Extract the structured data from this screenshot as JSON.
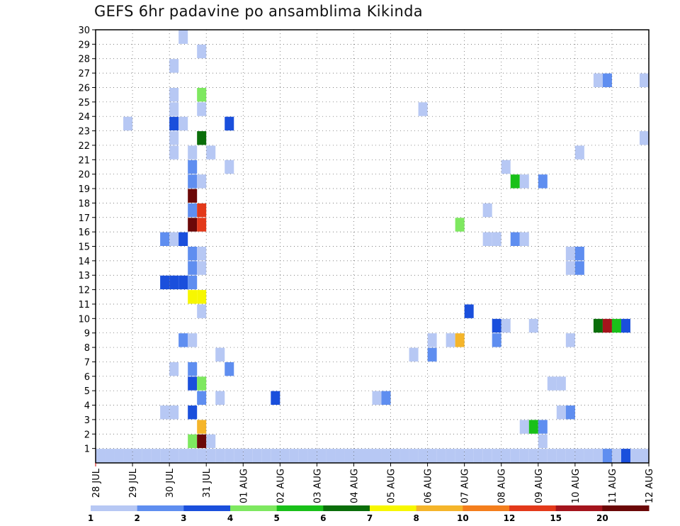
{
  "title": "GEFS 6hr padavine po ansamblima Kikinda",
  "chart_data": {
    "type": "heatmap",
    "title": "GEFS 6hr padavine po ansamblima Kikinda",
    "xlabel": "",
    "ylabel": "",
    "x_ticks": [
      "28 JUL",
      "29 JUL",
      "30 JUL",
      "31 JUL",
      "01 AUG",
      "02 AUG",
      "03 AUG",
      "04 AUG",
      "05 AUG",
      "06 AUG",
      "07 AUG",
      "08 AUG",
      "09 AUG",
      "10 AUG",
      "11 AUG",
      "12 AUG"
    ],
    "y_ticks": [
      "1",
      "2",
      "3",
      "4",
      "5",
      "6",
      "7",
      "8",
      "9",
      "10",
      "11",
      "12",
      "13",
      "14",
      "15",
      "16",
      "17",
      "18",
      "19",
      "20",
      "21",
      "22",
      "23",
      "24",
      "25",
      "26",
      "27",
      "28",
      "29",
      "30"
    ],
    "xlim_days": [
      0,
      15
    ],
    "ylim": [
      0,
      30
    ],
    "grid": true,
    "legend": {
      "placement": "bottom",
      "labels": [
        "1",
        "2",
        "3",
        "4",
        "5",
        "6",
        "7",
        "8",
        "10",
        "12",
        "15",
        "20"
      ],
      "colors": [
        "#b7c8f4",
        "#5f8ef0",
        "#1a4fdc",
        "#7ee860",
        "#19c019",
        "#0a6e0a",
        "#f7f700",
        "#f5b52a",
        "#f47e1c",
        "#e3391a",
        "#a4141c",
        "#6b0808"
      ]
    },
    "cells": [
      {
        "d": 0.25,
        "s": 0,
        "c": 0
      },
      {
        "d": 0.5,
        "s": 0,
        "c": 0
      },
      {
        "d": 0.75,
        "s": 0,
        "c": 0
      },
      {
        "d": 1.0,
        "s": 0,
        "c": 0
      },
      {
        "d": 1.25,
        "s": 0,
        "c": 0
      },
      {
        "d": 1.5,
        "s": 0,
        "c": 0
      },
      {
        "d": 1.75,
        "s": 0,
        "c": 0
      },
      {
        "d": 2.0,
        "s": 0,
        "c": 0
      },
      {
        "d": 2.25,
        "s": 0,
        "c": 0
      },
      {
        "d": 2.5,
        "s": 0,
        "c": 0
      },
      {
        "d": 2.75,
        "s": 0,
        "c": 0
      },
      {
        "d": 3.0,
        "s": 0,
        "c": 0
      },
      {
        "d": 3.25,
        "s": 0,
        "c": 0
      },
      {
        "d": 3.5,
        "s": 0,
        "c": 0
      },
      {
        "d": 3.75,
        "s": 0,
        "c": 0
      },
      {
        "d": 4.0,
        "s": 0,
        "c": 0
      },
      {
        "d": 4.25,
        "s": 0,
        "c": 0
      },
      {
        "d": 4.5,
        "s": 0,
        "c": 0
      },
      {
        "d": 4.75,
        "s": 0,
        "c": 0
      },
      {
        "d": 5.0,
        "s": 0,
        "c": 0
      },
      {
        "d": 5.25,
        "s": 0,
        "c": 0
      },
      {
        "d": 5.5,
        "s": 0,
        "c": 0
      },
      {
        "d": 5.75,
        "s": 0,
        "c": 0
      },
      {
        "d": 6.0,
        "s": 0,
        "c": 0
      },
      {
        "d": 6.25,
        "s": 0,
        "c": 0
      },
      {
        "d": 6.5,
        "s": 0,
        "c": 0
      },
      {
        "d": 6.75,
        "s": 0,
        "c": 0
      },
      {
        "d": 7.0,
        "s": 0,
        "c": 0
      },
      {
        "d": 7.25,
        "s": 0,
        "c": 0
      },
      {
        "d": 7.5,
        "s": 0,
        "c": 0
      },
      {
        "d": 7.75,
        "s": 0,
        "c": 0
      },
      {
        "d": 8.0,
        "s": 0,
        "c": 0
      },
      {
        "d": 8.25,
        "s": 0,
        "c": 0
      },
      {
        "d": 8.5,
        "s": 0,
        "c": 0
      },
      {
        "d": 8.75,
        "s": 0,
        "c": 0
      },
      {
        "d": 9.0,
        "s": 0,
        "c": 0
      },
      {
        "d": 9.25,
        "s": 0,
        "c": 0
      },
      {
        "d": 9.5,
        "s": 0,
        "c": 0
      },
      {
        "d": 9.75,
        "s": 0,
        "c": 0
      },
      {
        "d": 10.0,
        "s": 0,
        "c": 0
      },
      {
        "d": 10.25,
        "s": 0,
        "c": 0
      },
      {
        "d": 10.5,
        "s": 0,
        "c": 0
      },
      {
        "d": 10.75,
        "s": 0,
        "c": 0
      },
      {
        "d": 11.0,
        "s": 0,
        "c": 0
      },
      {
        "d": 11.25,
        "s": 0,
        "c": 0
      },
      {
        "d": 11.5,
        "s": 0,
        "c": 0
      },
      {
        "d": 11.75,
        "s": 0,
        "c": 0
      },
      {
        "d": 12.0,
        "s": 0,
        "c": 0
      },
      {
        "d": 12.25,
        "s": 0,
        "c": 0
      },
      {
        "d": 12.5,
        "s": 0,
        "c": 0
      },
      {
        "d": 12.75,
        "s": 0,
        "c": 0
      },
      {
        "d": 13.0,
        "s": 0,
        "c": 0
      },
      {
        "d": 13.25,
        "s": 0,
        "c": 0
      },
      {
        "d": 13.5,
        "s": 0,
        "c": 0
      },
      {
        "d": 13.75,
        "s": 0,
        "c": 0
      },
      {
        "d": 14.0,
        "s": 0,
        "c": 0
      },
      {
        "d": 14.25,
        "s": 0,
        "c": 0
      },
      {
        "d": 14.5,
        "s": 0,
        "c": 0
      },
      {
        "d": 14.75,
        "s": 0,
        "c": 0
      },
      {
        "d": 15.0,
        "s": 0,
        "c": 0
      },
      {
        "d": 2.75,
        "s": 0,
        "c": 0
      },
      {
        "d": 13.75,
        "s": 0,
        "c": 0
      },
      {
        "d": 14.0,
        "s": 0,
        "c": 1
      },
      {
        "d": 14.25,
        "s": 0,
        "c": 0
      },
      {
        "d": 14.5,
        "s": 0,
        "c": 2
      },
      {
        "d": 2.75,
        "s": 1,
        "c": 3
      },
      {
        "d": 3.0,
        "s": 1,
        "c": 11
      },
      {
        "d": 3.25,
        "s": 1,
        "c": 0
      },
      {
        "d": 12.25,
        "s": 1,
        "c": 0
      },
      {
        "d": 3.0,
        "s": 2,
        "c": 7
      },
      {
        "d": 11.75,
        "s": 2,
        "c": 0
      },
      {
        "d": 12.0,
        "s": 2,
        "c": 4
      },
      {
        "d": 12.25,
        "s": 2,
        "c": 1
      },
      {
        "d": 2.0,
        "s": 3,
        "c": 0
      },
      {
        "d": 2.25,
        "s": 3,
        "c": 0
      },
      {
        "d": 2.75,
        "s": 3,
        "c": 2
      },
      {
        "d": 12.75,
        "s": 3,
        "c": 0
      },
      {
        "d": 13.0,
        "s": 3,
        "c": 1
      },
      {
        "d": 3.0,
        "s": 4,
        "c": 1
      },
      {
        "d": 3.5,
        "s": 4,
        "c": 0
      },
      {
        "d": 5.0,
        "s": 4,
        "c": 2
      },
      {
        "d": 7.75,
        "s": 4,
        "c": 0
      },
      {
        "d": 8.0,
        "s": 4,
        "c": 1
      },
      {
        "d": 2.75,
        "s": 5,
        "c": 2
      },
      {
        "d": 3.0,
        "s": 5,
        "c": 3
      },
      {
        "d": 12.5,
        "s": 5,
        "c": 0
      },
      {
        "d": 12.75,
        "s": 5,
        "c": 0
      },
      {
        "d": 2.25,
        "s": 6,
        "c": 0
      },
      {
        "d": 2.75,
        "s": 6,
        "c": 1
      },
      {
        "d": 3.75,
        "s": 6,
        "c": 1
      },
      {
        "d": 3.5,
        "s": 7,
        "c": 0
      },
      {
        "d": 8.75,
        "s": 7,
        "c": 0
      },
      {
        "d": 9.25,
        "s": 7,
        "c": 1
      },
      {
        "d": 2.5,
        "s": 8,
        "c": 1
      },
      {
        "d": 2.75,
        "s": 8,
        "c": 0
      },
      {
        "d": 9.25,
        "s": 8,
        "c": 0
      },
      {
        "d": 9.75,
        "s": 8,
        "c": 0
      },
      {
        "d": 10.0,
        "s": 8,
        "c": 7
      },
      {
        "d": 11.0,
        "s": 8,
        "c": 1
      },
      {
        "d": 13.0,
        "s": 8,
        "c": 0
      },
      {
        "d": 11.0,
        "s": 9,
        "c": 2
      },
      {
        "d": 11.25,
        "s": 9,
        "c": 0
      },
      {
        "d": 12.0,
        "s": 9,
        "c": 0
      },
      {
        "d": 13.75,
        "s": 9,
        "c": 5
      },
      {
        "d": 14.0,
        "s": 9,
        "c": 10
      },
      {
        "d": 14.25,
        "s": 9,
        "c": 4
      },
      {
        "d": 14.5,
        "s": 9,
        "c": 2
      },
      {
        "d": 3.0,
        "s": 10,
        "c": 0
      },
      {
        "d": 10.25,
        "s": 10,
        "c": 2
      },
      {
        "d": 2.75,
        "s": 11,
        "c": 6
      },
      {
        "d": 3.0,
        "s": 11,
        "c": 6
      },
      {
        "d": 2.0,
        "s": 12,
        "c": 2
      },
      {
        "d": 2.25,
        "s": 12,
        "c": 2
      },
      {
        "d": 2.5,
        "s": 12,
        "c": 2
      },
      {
        "d": 2.75,
        "s": 12,
        "c": 1
      },
      {
        "d": 2.75,
        "s": 13,
        "c": 1
      },
      {
        "d": 3.0,
        "s": 13,
        "c": 0
      },
      {
        "d": 13.0,
        "s": 13,
        "c": 0
      },
      {
        "d": 13.25,
        "s": 13,
        "c": 1
      },
      {
        "d": 2.75,
        "s": 14,
        "c": 1
      },
      {
        "d": 3.0,
        "s": 14,
        "c": 0
      },
      {
        "d": 13.0,
        "s": 14,
        "c": 0
      },
      {
        "d": 13.25,
        "s": 14,
        "c": 1
      },
      {
        "d": 2.0,
        "s": 15,
        "c": 1
      },
      {
        "d": 2.25,
        "s": 15,
        "c": 0
      },
      {
        "d": 2.5,
        "s": 15,
        "c": 2
      },
      {
        "d": 10.75,
        "s": 15,
        "c": 0
      },
      {
        "d": 11.0,
        "s": 15,
        "c": 0
      },
      {
        "d": 11.5,
        "s": 15,
        "c": 1
      },
      {
        "d": 11.75,
        "s": 15,
        "c": 0
      },
      {
        "d": 2.75,
        "s": 16,
        "c": 11
      },
      {
        "d": 3.0,
        "s": 16,
        "c": 9
      },
      {
        "d": 10.0,
        "s": 16,
        "c": 3
      },
      {
        "d": 2.75,
        "s": 17,
        "c": 1
      },
      {
        "d": 3.0,
        "s": 17,
        "c": 9
      },
      {
        "d": 10.75,
        "s": 17,
        "c": 0
      },
      {
        "d": 2.75,
        "s": 18,
        "c": 11
      },
      {
        "d": 2.75,
        "s": 19,
        "c": 1
      },
      {
        "d": 3.0,
        "s": 19,
        "c": 0
      },
      {
        "d": 11.5,
        "s": 19,
        "c": 4
      },
      {
        "d": 11.75,
        "s": 19,
        "c": 0
      },
      {
        "d": 12.25,
        "s": 19,
        "c": 1
      },
      {
        "d": 2.75,
        "s": 20,
        "c": 1
      },
      {
        "d": 3.75,
        "s": 20,
        "c": 0
      },
      {
        "d": 11.25,
        "s": 20,
        "c": 0
      },
      {
        "d": 2.25,
        "s": 21,
        "c": 0
      },
      {
        "d": 2.75,
        "s": 21,
        "c": 0
      },
      {
        "d": 3.25,
        "s": 21,
        "c": 0
      },
      {
        "d": 13.25,
        "s": 21,
        "c": 0
      },
      {
        "d": 2.25,
        "s": 22,
        "c": 0
      },
      {
        "d": 3.0,
        "s": 22,
        "c": 5
      },
      {
        "d": 15.0,
        "s": 22,
        "c": 0
      },
      {
        "d": 1.0,
        "s": 23,
        "c": 0
      },
      {
        "d": 2.25,
        "s": 23,
        "c": 2
      },
      {
        "d": 2.5,
        "s": 23,
        "c": 0
      },
      {
        "d": 3.75,
        "s": 23,
        "c": 2
      },
      {
        "d": 2.25,
        "s": 24,
        "c": 0
      },
      {
        "d": 3.0,
        "s": 24,
        "c": 0
      },
      {
        "d": 9.0,
        "s": 24,
        "c": 0
      },
      {
        "d": 2.25,
        "s": 25,
        "c": 0
      },
      {
        "d": 3.0,
        "s": 25,
        "c": 3
      },
      {
        "d": 13.75,
        "s": 26,
        "c": 0
      },
      {
        "d": 14.0,
        "s": 26,
        "c": 1
      },
      {
        "d": 15.0,
        "s": 26,
        "c": 0
      },
      {
        "d": 2.25,
        "s": 27,
        "c": 0
      },
      {
        "d": 3.0,
        "s": 28,
        "c": 0
      },
      {
        "d": 2.5,
        "s": 29,
        "c": 0
      }
    ]
  }
}
